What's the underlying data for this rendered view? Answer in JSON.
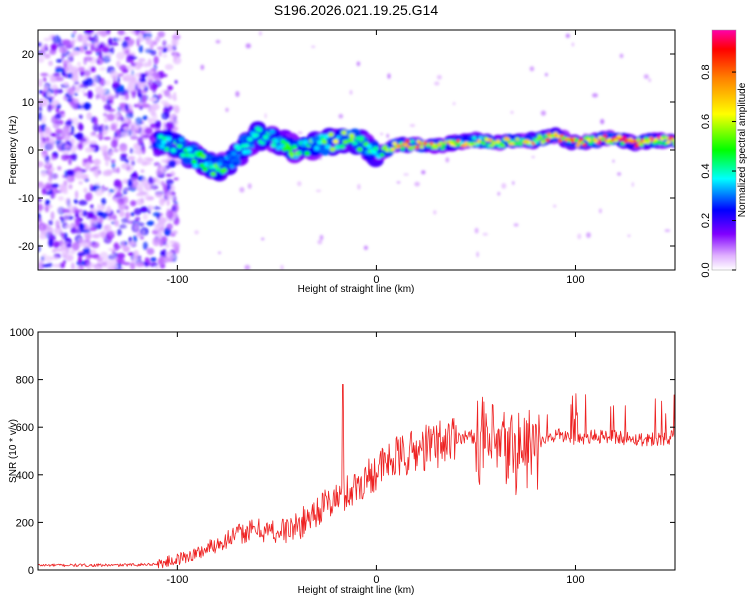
{
  "title": "S196.2026.021.19.25.G14",
  "chart_data": [
    {
      "type": "heatmap",
      "xlabel": "Height of straight line (km)",
      "ylabel": "Frequency (Hz)",
      "xlim": [
        -170,
        150
      ],
      "ylim": [
        -25,
        25
      ],
      "xticks": [
        -100,
        0,
        100
      ],
      "xtick_labels": [
        "-100",
        "0",
        "100"
      ],
      "yticks": [
        -20,
        -10,
        0,
        10,
        20
      ],
      "ytick_labels": [
        "-20",
        "-10",
        "0",
        "10",
        "20"
      ],
      "colorbar": {
        "label": "Normalized spectral amplitude",
        "range": [
          0.0,
          0.97
        ],
        "ticks": [
          0.0,
          0.2,
          0.4,
          0.6,
          0.8
        ],
        "tick_labels": [
          "0.0",
          "0.2",
          "0.4",
          "0.6",
          "0.8"
        ]
      },
      "ridge": {
        "height_km": [
          -110,
          -100,
          -90,
          -80,
          -70,
          -60,
          -50,
          -40,
          -30,
          -20,
          -10,
          0,
          10,
          20,
          30,
          40,
          50,
          60,
          70,
          80,
          90,
          100,
          110,
          120,
          130,
          140,
          150
        ],
        "frequency_hz": [
          2,
          1,
          -2,
          -4,
          -1,
          3,
          2,
          0,
          1,
          2,
          2,
          -1,
          1,
          1,
          1,
          1.5,
          2,
          1.5,
          2,
          2,
          3,
          1.5,
          2,
          2.5,
          1.5,
          2,
          2
        ],
        "amplitude": [
          0.4,
          0.45,
          0.5,
          0.55,
          0.45,
          0.4,
          0.45,
          0.55,
          0.55,
          0.6,
          0.55,
          0.5,
          0.85,
          0.8,
          0.75,
          0.8,
          0.7,
          0.75,
          0.7,
          0.75,
          0.85,
          0.85,
          0.9,
          0.9,
          0.95,
          0.95,
          0.9
        ]
      },
      "noise_region_km": [
        -170,
        -100
      ],
      "noise_amplitude_max": 0.25
    },
    {
      "type": "line",
      "xlabel": "Height of straight line (km)",
      "ylabel": "SNR (10 * v/v)",
      "xlim": [
        -170,
        150
      ],
      "ylim": [
        0,
        1000
      ],
      "xticks": [
        -100,
        0,
        100
      ],
      "xtick_labels": [
        "-100",
        "0",
        "100"
      ],
      "yticks": [
        0,
        200,
        400,
        600,
        800,
        1000
      ],
      "ytick_labels": [
        "0",
        "200",
        "400",
        "600",
        "800",
        "1000"
      ],
      "line_color": "#ee2222",
      "series": [
        {
          "name": "SNR",
          "x": [
            -170,
            -150,
            -130,
            -110,
            -100,
            -90,
            -80,
            -70,
            -60,
            -50,
            -40,
            -30,
            -20,
            -10,
            0,
            10,
            20,
            30,
            40,
            50,
            60,
            70,
            80,
            90,
            100,
            110,
            120,
            130,
            140,
            150
          ],
          "y": [
            20,
            20,
            20,
            25,
            45,
            70,
            110,
            150,
            170,
            160,
            180,
            250,
            300,
            350,
            420,
            470,
            500,
            530,
            560,
            560,
            500,
            500,
            520,
            570,
            550,
            560,
            560,
            550,
            550,
            560
          ]
        }
      ]
    }
  ]
}
